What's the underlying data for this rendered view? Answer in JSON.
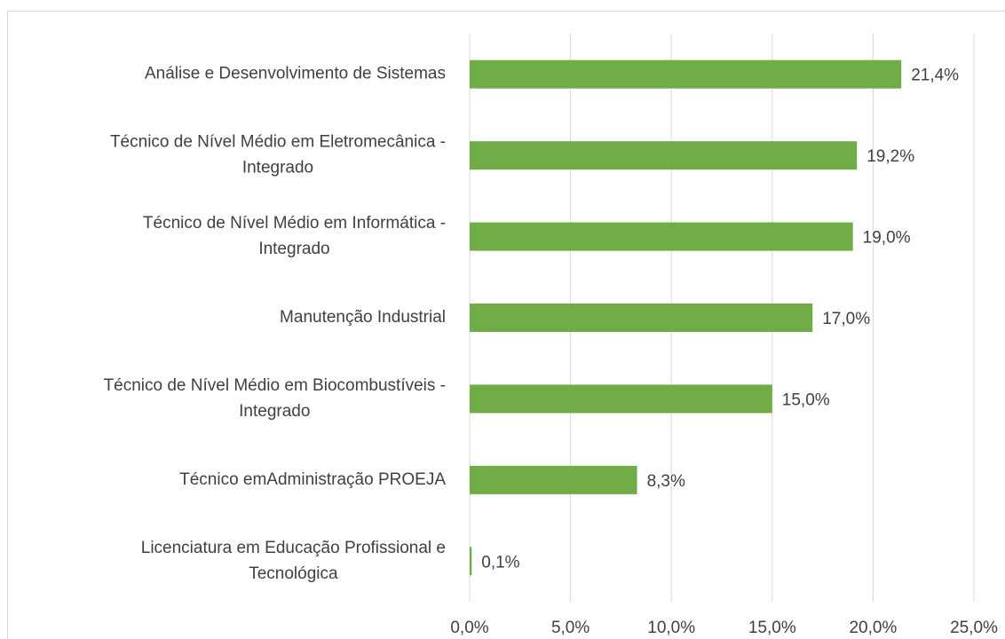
{
  "chart_data": {
    "type": "barh",
    "categories": [
      [
        "Análise e Desenvolvimento de Sistemas"
      ],
      [
        "Técnico de Nível Médio em Eletromecânica -",
        "Integrado"
      ],
      [
        "Técnico de Nível Médio em Informática -",
        "Integrado"
      ],
      [
        "Manutenção Industrial"
      ],
      [
        "Técnico de Nível Médio em Biocombustíveis -",
        "Integrado"
      ],
      [
        "Técnico emAdministração PROEJA"
      ],
      [
        "Licenciatura em Educação Profissional e",
        "Tecnológica"
      ]
    ],
    "values": [
      21.4,
      19.2,
      19.0,
      17.0,
      15.0,
      8.3,
      0.1
    ],
    "value_labels": [
      "21,4%",
      "19,2%",
      "19,0%",
      "17,0%",
      "15,0%",
      "8,3%",
      "0,1%"
    ],
    "color": "#70ad47",
    "xlim": [
      0,
      25
    ],
    "xticks": [
      {
        "value": 0,
        "label": "0,0%"
      },
      {
        "value": 5,
        "label": "5,0%"
      },
      {
        "value": 10,
        "label": "10,0%"
      },
      {
        "value": 15,
        "label": "15,0%"
      },
      {
        "value": 20,
        "label": "20,0%"
      },
      {
        "value": 25,
        "label": "25,0%"
      }
    ],
    "grid": true
  }
}
